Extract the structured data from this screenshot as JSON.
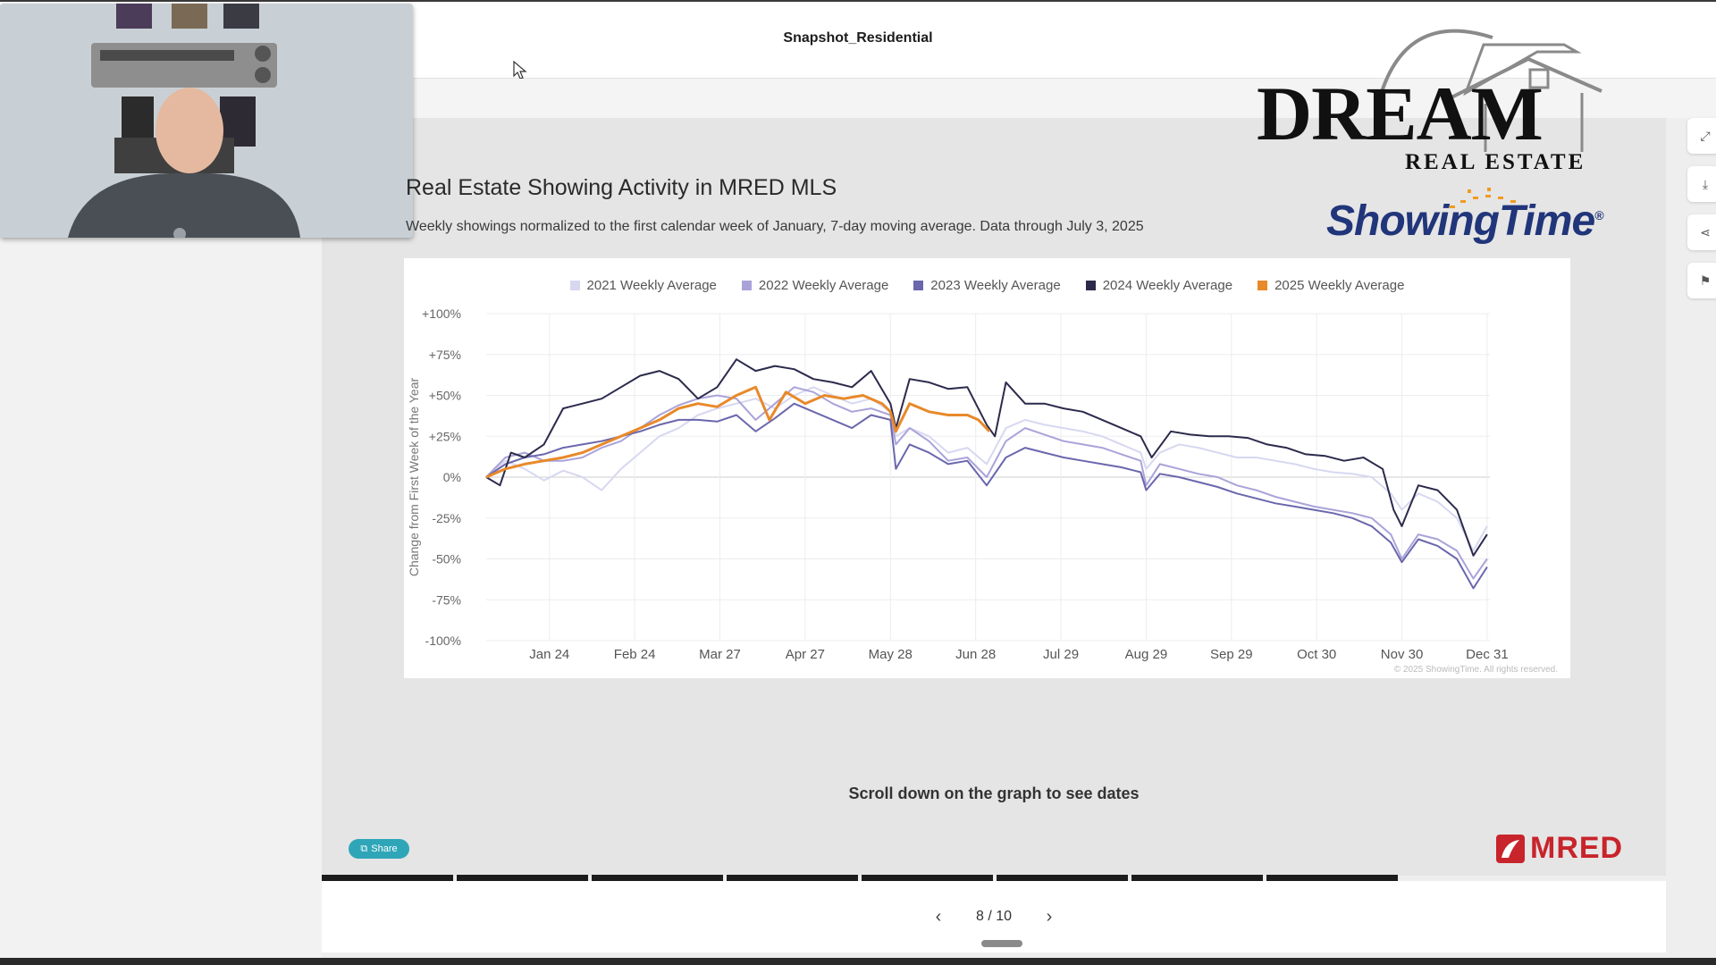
{
  "header": {
    "doc_title": "Snapshot_Residential"
  },
  "slide": {
    "title": "Real Estate Showing Activity in MRED MLS",
    "subtitle": "Weekly showings normalized to the first calendar week of January, 7-day moving average. Data through July 3, 2025",
    "scroll_note": "Scroll down on the graph to see dates",
    "share_label": "Share",
    "page_indicator": "8 / 10",
    "total_pages": 10,
    "current_page": 8
  },
  "logos": {
    "dream_main": "DREAM",
    "dream_sub": "REAL ESTATE",
    "showingtime": "ShowingTime",
    "showingtime_mark": "®",
    "mred": "MRED"
  },
  "chart_data": {
    "type": "line",
    "title": "Real Estate Showing Activity in MRED MLS",
    "ylabel": "Change from First Week of the Year",
    "ylim": [
      -100,
      100
    ],
    "y_ticks": [
      "+100%",
      "+75%",
      "+50%",
      "+25%",
      "0%",
      "-25%",
      "-50%",
      "-75%",
      "-100%"
    ],
    "y_tick_values": [
      100,
      75,
      50,
      25,
      0,
      -25,
      -50,
      -75,
      -100
    ],
    "x_ticks": [
      "Jan 24",
      "Feb 24",
      "Mar 27",
      "Apr 27",
      "May 28",
      "Jun 28",
      "Jul 29",
      "Aug 29",
      "Sep 29",
      "Oct 30",
      "Nov 30",
      "Dec 31"
    ],
    "x_tick_days": [
      24,
      55,
      86,
      117,
      148,
      179,
      210,
      241,
      272,
      303,
      334,
      365
    ],
    "x_range": [
      1,
      366
    ],
    "grid": true,
    "legend_position": "top",
    "credit": "© 2025 ShowingTime. All rights reserved.",
    "series": [
      {
        "name": "2021 Weekly Average",
        "color": "#d7d8f0",
        "points": [
          [
            1,
            0
          ],
          [
            8,
            10
          ],
          [
            15,
            5
          ],
          [
            22,
            -2
          ],
          [
            29,
            4
          ],
          [
            36,
            0
          ],
          [
            43,
            -8
          ],
          [
            50,
            5
          ],
          [
            57,
            15
          ],
          [
            64,
            25
          ],
          [
            71,
            30
          ],
          [
            78,
            38
          ],
          [
            85,
            42
          ],
          [
            92,
            45
          ],
          [
            99,
            48
          ],
          [
            106,
            42
          ],
          [
            113,
            50
          ],
          [
            120,
            55
          ],
          [
            127,
            50
          ],
          [
            134,
            45
          ],
          [
            141,
            48
          ],
          [
            148,
            40
          ],
          [
            150,
            25
          ],
          [
            155,
            30
          ],
          [
            162,
            25
          ],
          [
            169,
            15
          ],
          [
            176,
            18
          ],
          [
            183,
            8
          ],
          [
            190,
            30
          ],
          [
            197,
            35
          ],
          [
            204,
            32
          ],
          [
            211,
            30
          ],
          [
            218,
            28
          ],
          [
            225,
            25
          ],
          [
            232,
            20
          ],
          [
            239,
            15
          ],
          [
            241,
            5
          ],
          [
            246,
            15
          ],
          [
            253,
            20
          ],
          [
            260,
            18
          ],
          [
            267,
            15
          ],
          [
            274,
            12
          ],
          [
            281,
            12
          ],
          [
            288,
            10
          ],
          [
            295,
            8
          ],
          [
            302,
            5
          ],
          [
            309,
            3
          ],
          [
            316,
            2
          ],
          [
            323,
            0
          ],
          [
            330,
            -10
          ],
          [
            334,
            -20
          ],
          [
            340,
            -10
          ],
          [
            347,
            -15
          ],
          [
            354,
            -25
          ],
          [
            360,
            -45
          ],
          [
            365,
            -30
          ]
        ]
      },
      {
        "name": "2022 Weekly Average",
        "color": "#a9a3d9",
        "points": [
          [
            1,
            0
          ],
          [
            8,
            12
          ],
          [
            15,
            15
          ],
          [
            22,
            10
          ],
          [
            29,
            10
          ],
          [
            36,
            12
          ],
          [
            43,
            18
          ],
          [
            50,
            22
          ],
          [
            57,
            30
          ],
          [
            64,
            38
          ],
          [
            71,
            44
          ],
          [
            78,
            48
          ],
          [
            85,
            50
          ],
          [
            92,
            48
          ],
          [
            99,
            35
          ],
          [
            106,
            45
          ],
          [
            113,
            55
          ],
          [
            120,
            52
          ],
          [
            127,
            45
          ],
          [
            134,
            40
          ],
          [
            141,
            42
          ],
          [
            148,
            38
          ],
          [
            150,
            20
          ],
          [
            155,
            30
          ],
          [
            162,
            22
          ],
          [
            169,
            10
          ],
          [
            176,
            12
          ],
          [
            183,
            0
          ],
          [
            190,
            22
          ],
          [
            197,
            30
          ],
          [
            204,
            26
          ],
          [
            211,
            22
          ],
          [
            218,
            20
          ],
          [
            225,
            18
          ],
          [
            232,
            14
          ],
          [
            239,
            10
          ],
          [
            241,
            -5
          ],
          [
            246,
            8
          ],
          [
            253,
            5
          ],
          [
            260,
            2
          ],
          [
            267,
            0
          ],
          [
            274,
            -5
          ],
          [
            281,
            -8
          ],
          [
            288,
            -12
          ],
          [
            295,
            -15
          ],
          [
            302,
            -18
          ],
          [
            309,
            -20
          ],
          [
            316,
            -22
          ],
          [
            323,
            -25
          ],
          [
            330,
            -35
          ],
          [
            334,
            -50
          ],
          [
            340,
            -35
          ],
          [
            347,
            -38
          ],
          [
            354,
            -45
          ],
          [
            360,
            -62
          ],
          [
            365,
            -50
          ]
        ]
      },
      {
        "name": "2023 Weekly Average",
        "color": "#6a67ad",
        "points": [
          [
            1,
            0
          ],
          [
            8,
            8
          ],
          [
            15,
            12
          ],
          [
            22,
            14
          ],
          [
            29,
            18
          ],
          [
            36,
            20
          ],
          [
            43,
            22
          ],
          [
            50,
            25
          ],
          [
            57,
            28
          ],
          [
            64,
            32
          ],
          [
            71,
            35
          ],
          [
            78,
            35
          ],
          [
            85,
            34
          ],
          [
            92,
            38
          ],
          [
            99,
            28
          ],
          [
            106,
            36
          ],
          [
            113,
            45
          ],
          [
            120,
            40
          ],
          [
            127,
            35
          ],
          [
            134,
            30
          ],
          [
            141,
            38
          ],
          [
            148,
            35
          ],
          [
            150,
            5
          ],
          [
            155,
            20
          ],
          [
            162,
            15
          ],
          [
            169,
            8
          ],
          [
            176,
            10
          ],
          [
            183,
            -5
          ],
          [
            190,
            12
          ],
          [
            197,
            18
          ],
          [
            204,
            15
          ],
          [
            211,
            12
          ],
          [
            218,
            10
          ],
          [
            225,
            8
          ],
          [
            232,
            6
          ],
          [
            239,
            3
          ],
          [
            241,
            -8
          ],
          [
            246,
            2
          ],
          [
            253,
            0
          ],
          [
            260,
            -3
          ],
          [
            267,
            -6
          ],
          [
            274,
            -10
          ],
          [
            281,
            -13
          ],
          [
            288,
            -16
          ],
          [
            295,
            -18
          ],
          [
            302,
            -20
          ],
          [
            309,
            -22
          ],
          [
            316,
            -25
          ],
          [
            323,
            -30
          ],
          [
            330,
            -40
          ],
          [
            334,
            -52
          ],
          [
            340,
            -38
          ],
          [
            347,
            -42
          ],
          [
            354,
            -50
          ],
          [
            360,
            -68
          ],
          [
            365,
            -55
          ]
        ]
      },
      {
        "name": "2024 Weekly Average",
        "color": "#2b2a4c",
        "points": [
          [
            1,
            0
          ],
          [
            6,
            -5
          ],
          [
            10,
            15
          ],
          [
            15,
            12
          ],
          [
            22,
            20
          ],
          [
            29,
            42
          ],
          [
            36,
            45
          ],
          [
            43,
            48
          ],
          [
            50,
            55
          ],
          [
            57,
            62
          ],
          [
            64,
            65
          ],
          [
            71,
            60
          ],
          [
            78,
            48
          ],
          [
            85,
            55
          ],
          [
            92,
            72
          ],
          [
            99,
            65
          ],
          [
            106,
            68
          ],
          [
            113,
            66
          ],
          [
            120,
            60
          ],
          [
            127,
            58
          ],
          [
            134,
            55
          ],
          [
            141,
            65
          ],
          [
            148,
            45
          ],
          [
            150,
            30
          ],
          [
            155,
            60
          ],
          [
            162,
            58
          ],
          [
            169,
            54
          ],
          [
            176,
            55
          ],
          [
            183,
            32
          ],
          [
            186,
            25
          ],
          [
            190,
            58
          ],
          [
            197,
            45
          ],
          [
            204,
            45
          ],
          [
            211,
            42
          ],
          [
            218,
            40
          ],
          [
            225,
            35
          ],
          [
            232,
            30
          ],
          [
            239,
            25
          ],
          [
            243,
            12
          ],
          [
            250,
            28
          ],
          [
            257,
            26
          ],
          [
            264,
            25
          ],
          [
            271,
            25
          ],
          [
            278,
            24
          ],
          [
            285,
            20
          ],
          [
            292,
            18
          ],
          [
            299,
            14
          ],
          [
            306,
            13
          ],
          [
            313,
            10
          ],
          [
            320,
            12
          ],
          [
            327,
            5
          ],
          [
            331,
            -20
          ],
          [
            334,
            -30
          ],
          [
            340,
            -5
          ],
          [
            347,
            -8
          ],
          [
            354,
            -20
          ],
          [
            360,
            -48
          ],
          [
            365,
            -35
          ]
        ]
      },
      {
        "name": "2025 Weekly Average",
        "color": "#e8892a",
        "points": [
          [
            1,
            0
          ],
          [
            8,
            5
          ],
          [
            15,
            8
          ],
          [
            22,
            10
          ],
          [
            29,
            12
          ],
          [
            36,
            15
          ],
          [
            43,
            20
          ],
          [
            50,
            25
          ],
          [
            57,
            30
          ],
          [
            64,
            35
          ],
          [
            71,
            42
          ],
          [
            78,
            45
          ],
          [
            85,
            43
          ],
          [
            92,
            50
          ],
          [
            99,
            55
          ],
          [
            104,
            35
          ],
          [
            110,
            52
          ],
          [
            117,
            45
          ],
          [
            124,
            50
          ],
          [
            131,
            48
          ],
          [
            138,
            50
          ],
          [
            145,
            45
          ],
          [
            148,
            40
          ],
          [
            150,
            28
          ],
          [
            155,
            45
          ],
          [
            162,
            40
          ],
          [
            169,
            38
          ],
          [
            176,
            38
          ],
          [
            180,
            35
          ],
          [
            184,
            28
          ]
        ]
      }
    ]
  }
}
